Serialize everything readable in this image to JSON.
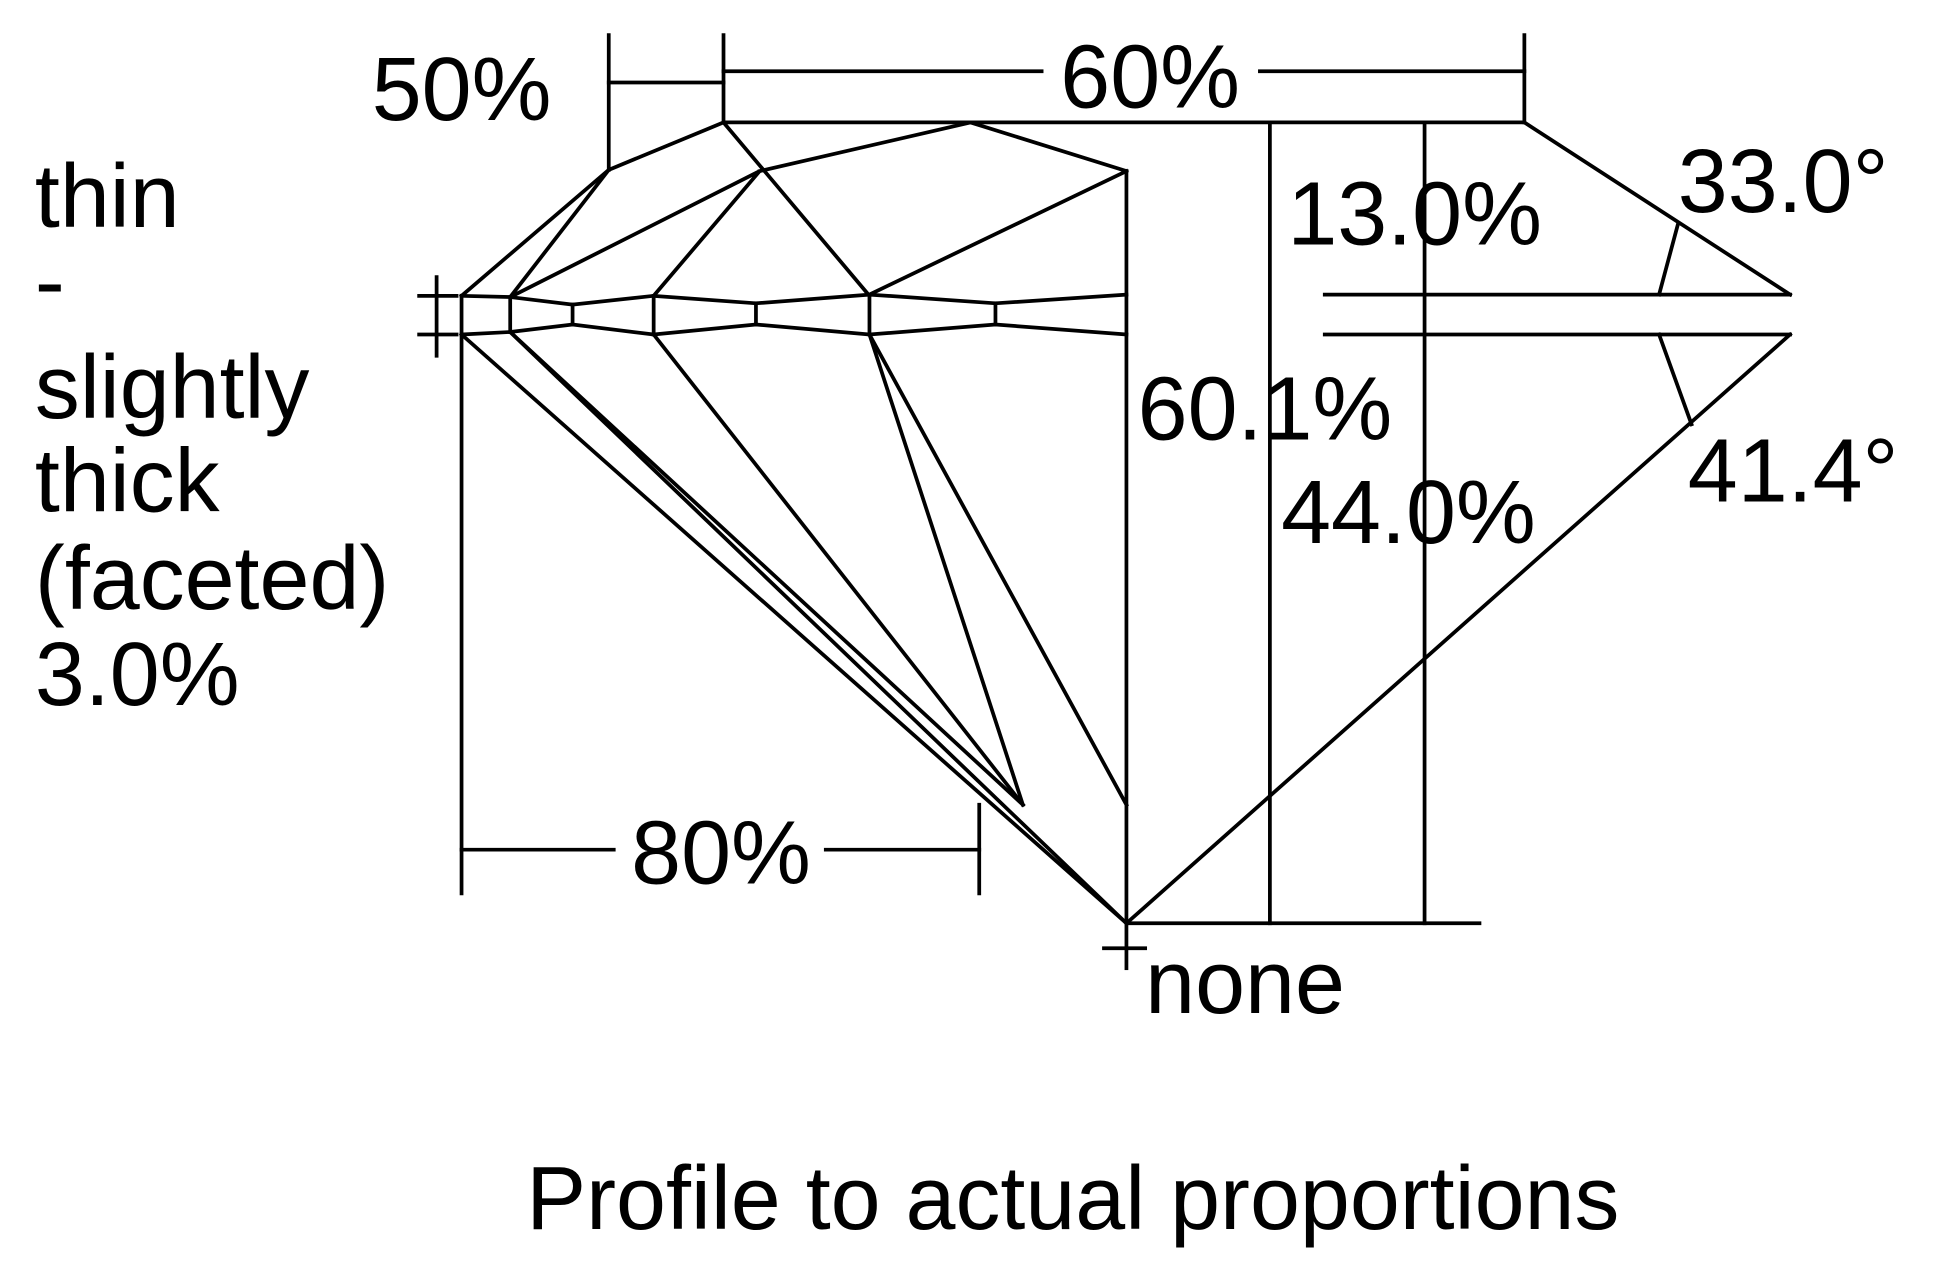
{
  "labels": {
    "crown_angle_span": "50%",
    "table": "60%",
    "crown_height": "13.0%",
    "crown_angle": "33.0°",
    "total_depth": "60.1%",
    "pavilion_depth": "44.0%",
    "pavilion_angle": "41.4°",
    "lower_half": "80%",
    "culet": "none",
    "girdle": [
      "thin",
      "-",
      "slightly",
      "thick",
      "(faceted)",
      "3.0%"
    ]
  },
  "caption": "Profile to actual proportions",
  "colors": {
    "line": "#000000",
    "background": "#ffffff"
  }
}
